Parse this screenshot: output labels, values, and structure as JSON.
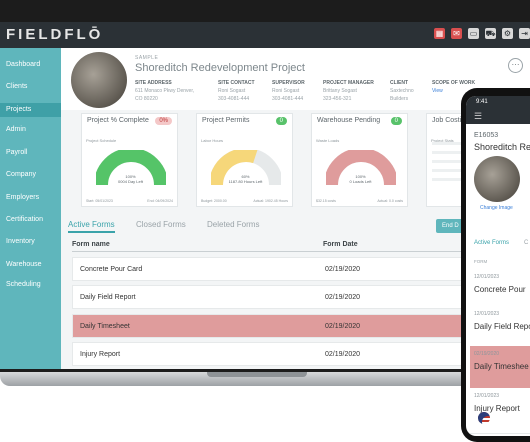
{
  "app": {
    "logo": "FIELDFLŌ"
  },
  "topbar": {
    "icons": [
      "calendar-icon",
      "notification-icon",
      "devices-icon",
      "truck-icon",
      "gear-icon",
      "logout-icon"
    ]
  },
  "sidebar": {
    "items": [
      {
        "label": "Dashboard",
        "active": false
      },
      {
        "label": "Clients",
        "active": false
      },
      {
        "label": "Projects",
        "active": true
      },
      {
        "label": "Admin",
        "active": false
      },
      {
        "label": "Payroll",
        "active": false
      },
      {
        "label": "Company",
        "active": false
      },
      {
        "label": "Employers",
        "active": false
      },
      {
        "label": "Certification",
        "active": false
      },
      {
        "label": "Inventory",
        "active": false
      },
      {
        "label": "Warehouse",
        "active": false
      },
      {
        "label": "Scheduling",
        "active": false
      }
    ]
  },
  "project": {
    "sample": "SAMPLE",
    "title": "Shoreditch Redevelopment Project",
    "more": "···",
    "meta": [
      {
        "label": "SITE ADDRESS",
        "lines": [
          "611 Monaco Pkwy Denver,",
          "CO 80220"
        ]
      },
      {
        "label": "SITE CONTACT",
        "lines": [
          "Roni Sogast",
          "303-4081-444"
        ]
      },
      {
        "label": "SUPERVISOR",
        "lines": [
          "Roni Sogast",
          "303-4081-444"
        ]
      },
      {
        "label": "PROJECT MANAGER",
        "lines": [
          "Brittany Sogast",
          "323-456-321"
        ]
      },
      {
        "label": "CLIENT",
        "lines": [
          "Saxtechno",
          "Builders"
        ]
      },
      {
        "label": "SCOPE OF WORK",
        "lines": [
          "View"
        ]
      }
    ]
  },
  "cards": [
    {
      "title": "Project % Complete",
      "badge": "0%",
      "badge_style": "red",
      "sub": "Project Schedule",
      "center": "100%",
      "center2": "0004 Day Left",
      "foot_left": "Start: 05/01/2023",
      "foot_right": "End: 04/09/2024",
      "color": "#55c468",
      "fill": 1.0
    },
    {
      "title": "Project Permits",
      "badge": "0",
      "badge_style": "green",
      "sub": "Labor Hours",
      "center": "60%",
      "center2": "1187.80 Hours Left",
      "foot_left": "Budget: 2000.00",
      "foot_right": "Actual: 1902.45 Hours",
      "color": "#f6d77a",
      "fill": 0.6
    },
    {
      "title": "Warehouse Pending",
      "badge": "0",
      "badge_style": "green",
      "sub": "Waste Loads",
      "center": "100%",
      "center2": "0 Loads Left",
      "foot_left": "$32.15 costs",
      "foot_right": "Actual: 0.0 costs",
      "color": "#df9c9c",
      "fill": 1.0
    },
    {
      "title": "Job Costing",
      "badge": "",
      "badge_style": "",
      "sub": "Project Stats",
      "center": "",
      "center2": "",
      "foot_left": "",
      "foot_right": "",
      "color": "",
      "fill": 0
    }
  ],
  "tabs": [
    {
      "label": "Active Forms",
      "active": true
    },
    {
      "label": "Closed Forms",
      "active": false
    },
    {
      "label": "Deleted Forms",
      "active": false
    }
  ],
  "end_button": "End D",
  "table": {
    "headers": [
      "Form name",
      "Form Date"
    ],
    "rows": [
      {
        "name": "Concrete Pour Card",
        "date": "02/19/2020",
        "highlight": false
      },
      {
        "name": "Daily Field Report",
        "date": "02/19/2020",
        "highlight": false
      },
      {
        "name": "Daily Timesheet",
        "date": "02/19/2020",
        "highlight": true
      },
      {
        "name": "Injury Report",
        "date": "02/19/2020",
        "highlight": false
      }
    ]
  },
  "phone": {
    "time": "9:41",
    "menu": "☰",
    "id": "E16053",
    "title": "Shoreditch Red",
    "change_image": "Change Image",
    "tab_active": "Active Forms",
    "tab_other": "C",
    "form_header": "FORM",
    "rows": [
      {
        "date": "12/01/2023",
        "name": "Concrete Pour",
        "highlight": false
      },
      {
        "date": "12/01/2023",
        "name": "Daily Field Repo",
        "highlight": false
      },
      {
        "date": "02/19/2020",
        "name": "Daily Timeshee",
        "highlight": true
      },
      {
        "date": "12/01/2023",
        "name": "Injury Report",
        "highlight": false
      }
    ]
  }
}
